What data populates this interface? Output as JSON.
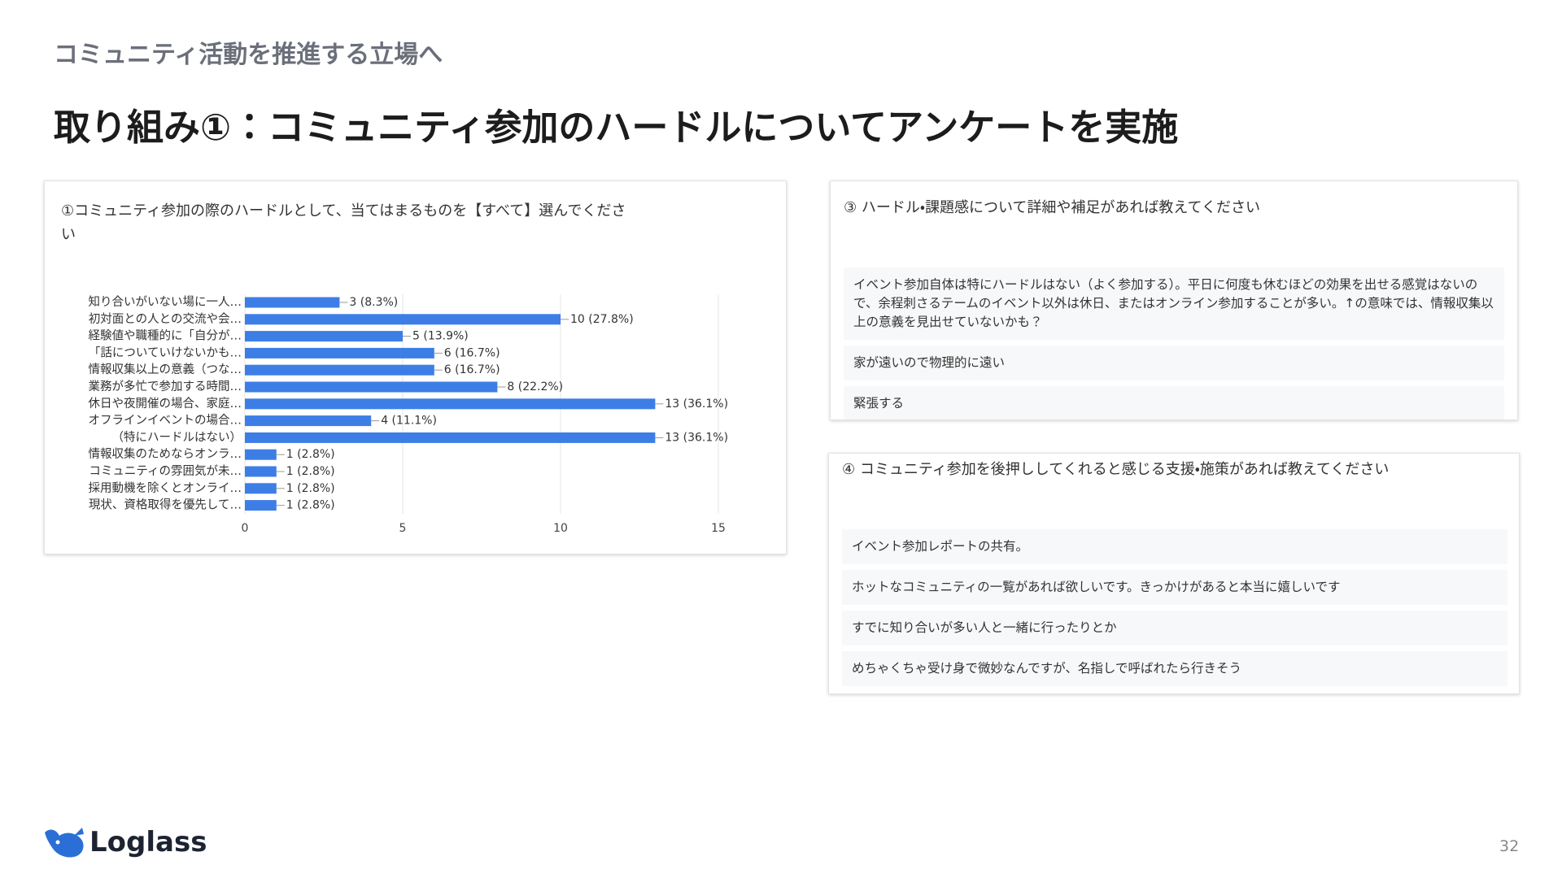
{
  "header": {
    "section": "コミュニティ活動を推進する立場へ",
    "title": "取り組み①：コミュニティ参加のハードルについてアンケートを実施"
  },
  "chart_data": {
    "type": "bar",
    "orientation": "horizontal",
    "title": "①コミュニティ参加の際のハードルとして、当てはまるものを【すべて】選んでください",
    "categories": [
      "知り合いがいない場に一人…",
      "初対面との人との交流や会…",
      "経験値や職種的に「自分が…",
      "「話についていけないかも…",
      "情報収集以上の意義（つな…",
      "業務が多忙で参加する時間…",
      "休日や夜開催の場合、家庭…",
      "オフラインイベントの場合…",
      "（特にハードルはない）",
      "情報収集のためならオンラ…",
      "コミュニティの雰囲気が未…",
      "採用動機を除くとオンライ…",
      "現状、資格取得を優先して…"
    ],
    "values": [
      3,
      10,
      5,
      6,
      6,
      8,
      13,
      4,
      13,
      1,
      1,
      1,
      1
    ],
    "value_labels": [
      "3 (8.3%)",
      "10 (27.8%)",
      "5 (13.9%)",
      "6 (16.7%)",
      "6 (16.7%)",
      "8 (22.2%)",
      "13 (36.1%)",
      "4 (11.1%)",
      "13 (36.1%)",
      "1 (2.8%)",
      "1 (2.8%)",
      "1 (2.8%)",
      "1 (2.8%)"
    ],
    "color": "#3d7ee6",
    "xlim": [
      0,
      15
    ],
    "xticks": [
      0,
      5,
      10,
      15
    ],
    "grid": true
  },
  "panels": [
    {
      "question": "③ ハードル・課題感について詳細や補足があれば教えてください",
      "responses": [
        "イベント参加自体は特にハードルはない（よく参加する）。平日に何度も休むほどの効果を出せる感覚はないので、余程刺さるテームのイベント以外は休日、またはオンライン参加することが多い。↑の意味では、情報収集以上の意義を見出せていないかも？",
        "家が遠いので物理的に遠い",
        "緊張する"
      ]
    },
    {
      "question": "④ コミュニティ参加を後押ししてくれると感じる支援・施策があれば教えてください",
      "responses": [
        "イベント参加レポートの共有。",
        "ホットなコミュニティの一覧があれば欲しいです。きっかけがあると本当に嬉しいです",
        "すでに知り合いが多い人と一緒に行ったりとか",
        "めちゃくちゃ受け身で微妙なんですが、名指しで呼ばれたら行きそう"
      ]
    }
  ],
  "footer": {
    "logo": "Loglass",
    "page": "32"
  }
}
